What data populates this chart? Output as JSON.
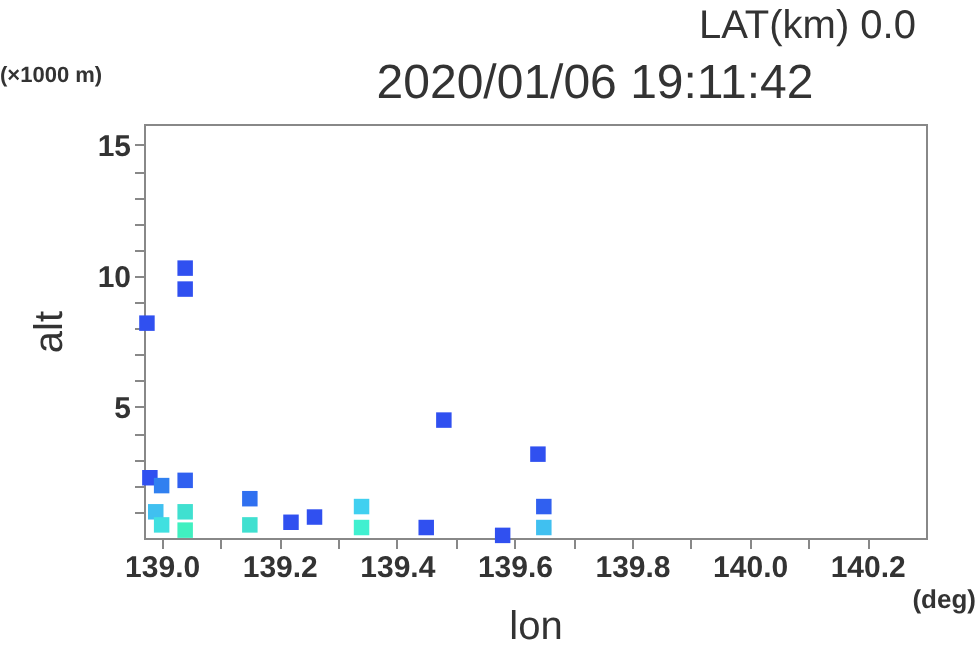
{
  "chart_data": {
    "type": "scatter",
    "title": "2020/01/06 19:11:42",
    "xlabel": "lon",
    "ylabel": "alt",
    "annotations": [
      "LAT(km) 0.0",
      "(×1000 m)",
      "(deg)"
    ],
    "x": [
      138.98,
      139.0,
      138.99,
      139.0,
      139.04,
      139.04,
      139.04,
      139.04,
      139.04,
      138.975,
      139.15,
      139.15,
      139.22,
      139.26,
      139.34,
      139.34,
      139.45,
      139.48,
      139.58,
      139.64,
      139.65,
      139.65
    ],
    "values": [
      2.3,
      2.0,
      1.0,
      0.5,
      2.2,
      1.0,
      0.3,
      10.3,
      9.5,
      8.2,
      1.5,
      0.5,
      0.6,
      0.8,
      1.2,
      0.4,
      0.4,
      4.5,
      0.1,
      3.2,
      1.2,
      0.4
    ],
    "colors": [
      "#3050f0",
      "#3080f0",
      "#40c0f0",
      "#40e0e0",
      "#3060f0",
      "#40e0d0",
      "#40f0c0",
      "#3050f0",
      "#3050f0",
      "#3050f0",
      "#3070f0",
      "#40e0d0",
      "#3050f0",
      "#3050f0",
      "#40d0f0",
      "#40f0d0",
      "#3050f0",
      "#3050f0",
      "#3050f0",
      "#3050f0",
      "#3060f0",
      "#40c0f0"
    ],
    "marker": "square",
    "xlim": [
      138.97,
      140.3
    ],
    "ylim": [
      0,
      15.8
    ],
    "xticks": [
      {
        "value": 139.0,
        "label": "139.0"
      },
      {
        "value": 139.1,
        "label": null
      },
      139.2,
      {
        "value": 139.3,
        "label": null
      },
      139.4,
      {
        "value": 139.5,
        "label": null
      },
      139.6,
      {
        "value": 139.7,
        "label": null
      },
      139.8,
      {
        "value": 139.9,
        "label": null
      },
      {
        "value": 140.0,
        "label": "140.0"
      },
      {
        "value": 140.1,
        "label": null
      },
      140.2
    ],
    "yticks": [
      {
        "value": 1,
        "label": null
      },
      {
        "value": 2,
        "label": null
      },
      {
        "value": 3,
        "label": null
      },
      {
        "value": 4,
        "label": null
      },
      5,
      {
        "value": 6,
        "label": null
      },
      {
        "value": 7,
        "label": null
      },
      {
        "value": 8,
        "label": null
      },
      {
        "value": 9,
        "label": null
      },
      10,
      {
        "value": 11,
        "label": null
      },
      {
        "value": 12,
        "label": null
      },
      {
        "value": 13,
        "label": null
      },
      {
        "value": 14,
        "label": null
      },
      15
    ],
    "grid": false
  }
}
